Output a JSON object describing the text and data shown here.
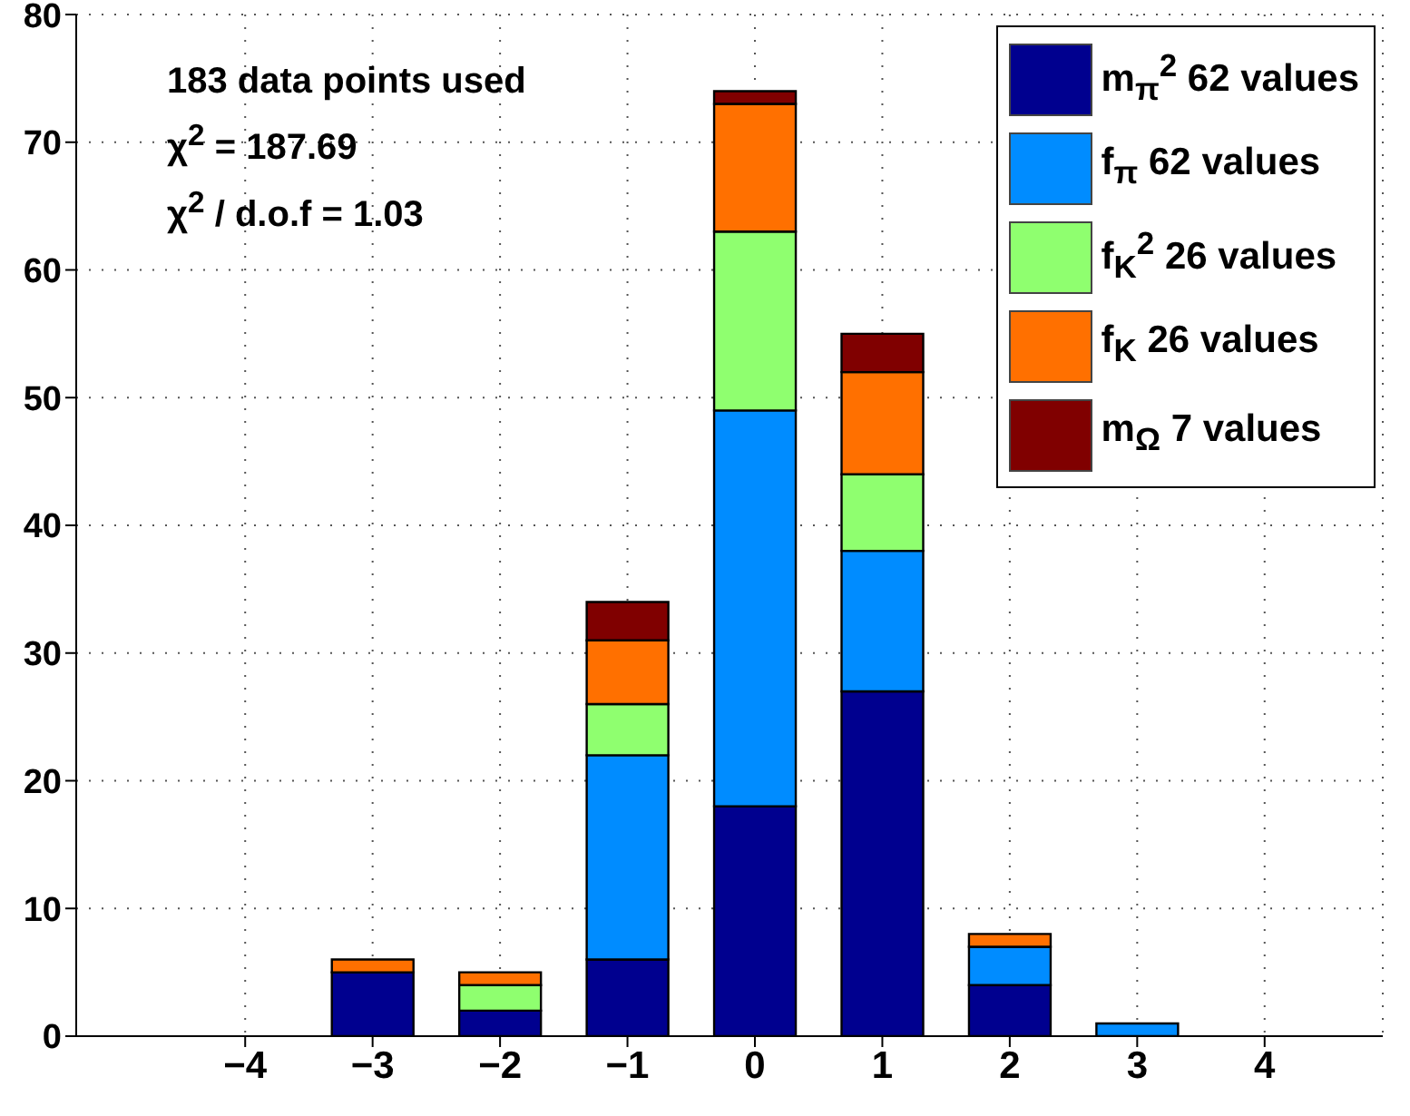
{
  "chart_data": {
    "type": "bar",
    "stacked": true,
    "categories": [
      "−4",
      "−3",
      "−2",
      "−1",
      "0",
      "1",
      "2",
      "3",
      "4"
    ],
    "series": [
      {
        "name": "m$_{π}$$^{2}$  62 values",
        "color": "#00008f",
        "values": [
          0,
          5,
          2,
          6,
          18,
          27,
          4,
          0,
          0
        ]
      },
      {
        "name": "f$_{π}$  62 values",
        "color": "#008cff",
        "values": [
          0,
          0,
          0,
          16,
          31,
          11,
          3,
          1,
          0
        ]
      },
      {
        "name": "f$_{K}$$^{2}$  26 values",
        "color": "#8fff6f",
        "values": [
          0,
          0,
          2,
          4,
          14,
          6,
          0,
          0,
          0
        ]
      },
      {
        "name": "f$_{K}$  26 values",
        "color": "#ff7000",
        "values": [
          0,
          1,
          1,
          5,
          10,
          8,
          1,
          0,
          0
        ]
      },
      {
        "name": "m$_{Ω}$  7 values",
        "color": "#800000",
        "values": [
          0,
          0,
          0,
          3,
          1,
          3,
          0,
          0,
          0
        ]
      }
    ],
    "ylim": [
      0,
      80
    ],
    "yticks": [
      0,
      10,
      20,
      30,
      40,
      50,
      60,
      70,
      80
    ],
    "grid": true,
    "legend": "top right",
    "annotations": [
      "183 data points used",
      "χ$^{2}$ = 187.69",
      "χ$^{2}$ / d.o.f = 1.03"
    ]
  }
}
